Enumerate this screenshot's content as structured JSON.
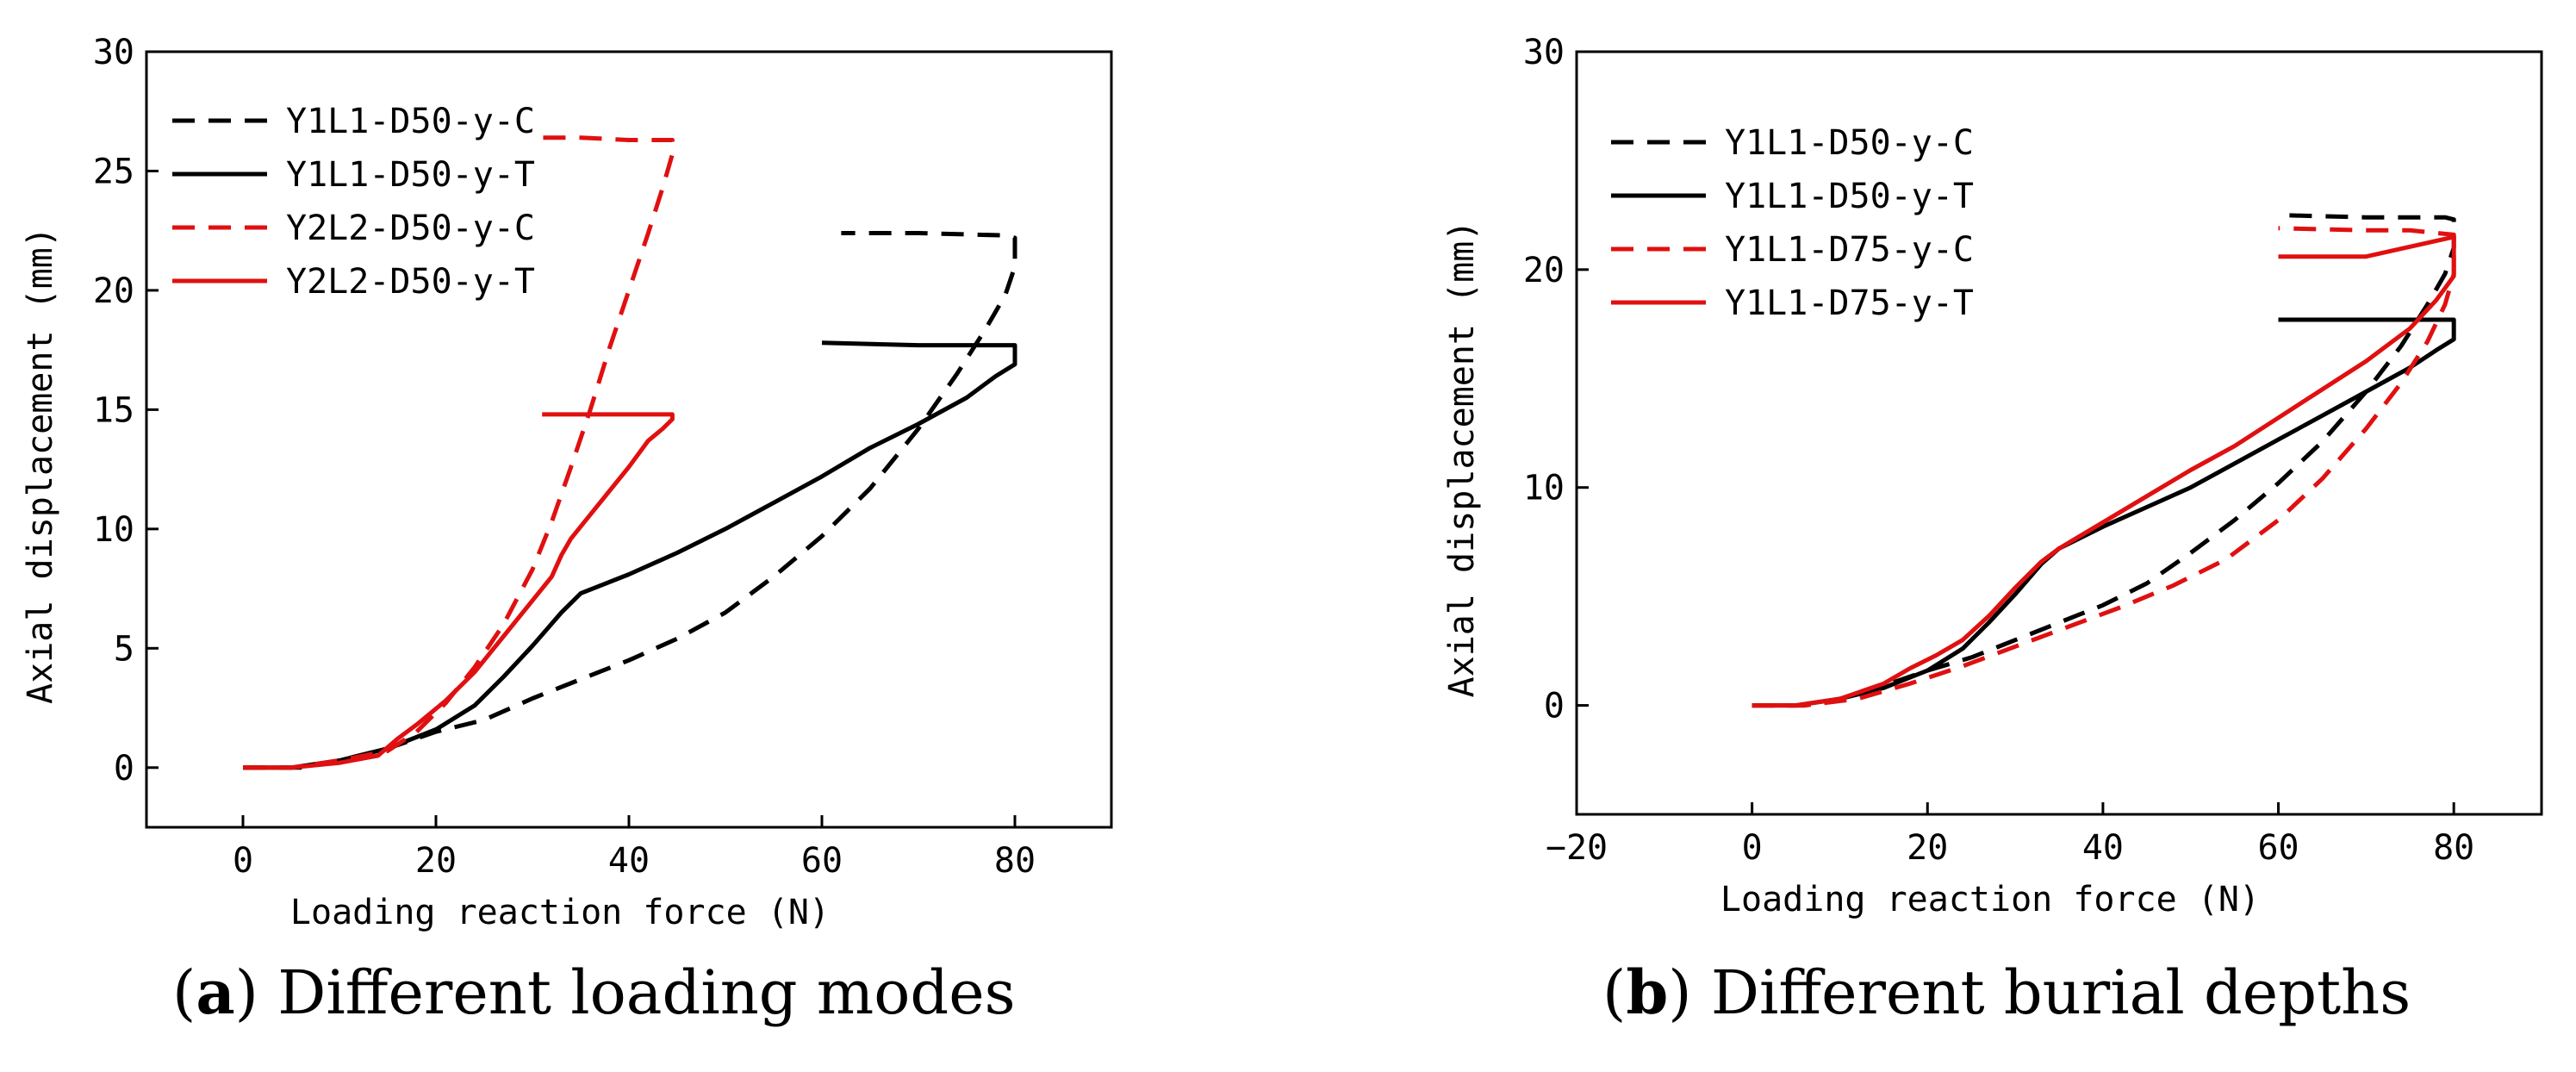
{
  "chart_data": [
    {
      "type": "line",
      "caption_letter": "a",
      "caption_text": "Different loading modes",
      "xlabel": "Loading reaction force (N)",
      "ylabel": "Axial displacement (mm)",
      "xlim": [
        -10,
        90
      ],
      "ylim": [
        -2.5,
        30
      ],
      "xticks": [
        0,
        20,
        40,
        60,
        80
      ],
      "xtick_labels": [
        "0",
        "20",
        "40",
        "60",
        "80"
      ],
      "yticks": [
        0,
        5,
        10,
        15,
        20,
        25,
        30
      ],
      "ytick_labels": [
        "0",
        "5",
        "10",
        "15",
        "20",
        "25",
        "30"
      ],
      "grid": false,
      "legend_position": "top-left",
      "series": [
        {
          "name": "Y1L1-D50-y-C",
          "color": "#000000",
          "dash": "dashed",
          "x": [
            0,
            6,
            10,
            15,
            20,
            25,
            30,
            35,
            40,
            45,
            50,
            55,
            60,
            65,
            70,
            74,
            77,
            79,
            80,
            80,
            79,
            70,
            62
          ],
          "y": [
            0,
            0,
            0.3,
            0.8,
            1.5,
            2.0,
            2.9,
            3.7,
            4.5,
            5.4,
            6.5,
            8.0,
            9.7,
            11.7,
            14.2,
            16.5,
            18.4,
            19.8,
            21.0,
            22.2,
            22.3,
            22.4,
            22.4
          ]
        },
        {
          "name": "Y1L1-D50-y-T",
          "color": "#000000",
          "dash": "solid",
          "x": [
            0,
            5,
            10,
            15,
            20,
            24,
            27,
            30,
            33,
            35,
            40,
            45,
            50,
            55,
            60,
            65,
            70,
            75,
            78,
            80,
            80,
            70,
            60
          ],
          "y": [
            0,
            0,
            0.3,
            0.8,
            1.6,
            2.6,
            3.8,
            5.1,
            6.5,
            7.3,
            8.1,
            9.0,
            10.0,
            11.1,
            12.2,
            13.4,
            14.4,
            15.5,
            16.4,
            16.9,
            17.7,
            17.7,
            17.8
          ]
        },
        {
          "name": "Y2L2-D50-y-C",
          "color": "#e01010",
          "dash": "dashed",
          "x": [
            0,
            5,
            10,
            15,
            18,
            21,
            24,
            27,
            30,
            32,
            34,
            36,
            38,
            40,
            42,
            43.5,
            44.5,
            44.5,
            40,
            35,
            31
          ],
          "y": [
            0,
            0,
            0.3,
            0.7,
            1.5,
            2.7,
            4.2,
            6.0,
            8.3,
            10.3,
            12.6,
            15.0,
            17.6,
            20.0,
            22.4,
            24.3,
            25.7,
            26.3,
            26.3,
            26.4,
            26.4
          ]
        },
        {
          "name": "Y2L2-D50-y-T",
          "color": "#e01010",
          "dash": "solid",
          "x": [
            0,
            5,
            10,
            14,
            16,
            18,
            21,
            24,
            27,
            30,
            32,
            33,
            34,
            36,
            38,
            40,
            42,
            43.5,
            44.5,
            44.5,
            40,
            36,
            31
          ],
          "y": [
            0,
            0,
            0.2,
            0.5,
            1.2,
            1.8,
            2.8,
            4.0,
            5.5,
            7.0,
            8.0,
            8.9,
            9.6,
            10.6,
            11.6,
            12.6,
            13.7,
            14.2,
            14.6,
            14.8,
            14.8,
            14.8,
            14.8
          ]
        }
      ]
    },
    {
      "type": "line",
      "caption_letter": "b",
      "caption_text": "Different burial depths",
      "xlabel": "Loading reaction force (N)",
      "ylabel": "Axial displacement (mm)",
      "xlim": [
        -20,
        90
      ],
      "ylim": [
        -5,
        30
      ],
      "xticks": [
        -20,
        0,
        20,
        40,
        60,
        80
      ],
      "xtick_labels": [
        "−20",
        "0",
        "20",
        "40",
        "60",
        "80"
      ],
      "yticks": [
        0,
        10,
        20,
        30
      ],
      "ytick_labels": [
        "0",
        "10",
        "20",
        "30"
      ],
      "grid": false,
      "legend_position": "top-left",
      "series": [
        {
          "name": "Y1L1-D50-y-C",
          "color": "#000000",
          "dash": "dashed",
          "x": [
            0,
            6,
            10,
            15,
            20,
            25,
            30,
            35,
            40,
            45,
            50,
            55,
            60,
            65,
            70,
            74,
            77,
            79,
            80,
            80,
            79,
            70,
            60
          ],
          "y": [
            0,
            0,
            0.3,
            0.9,
            1.6,
            2.2,
            3.0,
            3.8,
            4.6,
            5.6,
            7.0,
            8.5,
            10.2,
            12.1,
            14.4,
            16.5,
            18.4,
            19.8,
            21.0,
            22.3,
            22.4,
            22.4,
            22.5
          ]
        },
        {
          "name": "Y1L1-D50-y-T",
          "color": "#000000",
          "dash": "solid",
          "x": [
            0,
            5,
            10,
            15,
            20,
            24,
            27,
            30,
            33,
            35,
            40,
            45,
            50,
            55,
            60,
            65,
            70,
            75,
            78,
            80,
            80,
            70,
            60
          ],
          "y": [
            0,
            0,
            0.3,
            0.8,
            1.6,
            2.6,
            3.8,
            5.1,
            6.5,
            7.2,
            8.2,
            9.1,
            10.0,
            11.1,
            12.2,
            13.3,
            14.4,
            15.5,
            16.3,
            16.8,
            17.7,
            17.7,
            17.7
          ]
        },
        {
          "name": "Y1L1-D75-y-C",
          "color": "#e01010",
          "dash": "dashed",
          "x": [
            0,
            6,
            12,
            18,
            24,
            30,
            36,
            42,
            48,
            54,
            60,
            65,
            70,
            74,
            77,
            79,
            80,
            80,
            75,
            70,
            60
          ],
          "y": [
            0,
            0,
            0.3,
            1.0,
            1.8,
            2.7,
            3.6,
            4.5,
            5.5,
            6.7,
            8.5,
            10.4,
            12.7,
            14.8,
            16.7,
            18.4,
            19.8,
            21.6,
            21.8,
            21.8,
            21.9
          ]
        },
        {
          "name": "Y1L1-D75-y-T",
          "color": "#e01010",
          "dash": "solid",
          "x": [
            0,
            5,
            10,
            15,
            18,
            21,
            24,
            27,
            30,
            33,
            35,
            40,
            45,
            50,
            55,
            60,
            65,
            70,
            75,
            78,
            80,
            80,
            70,
            60
          ],
          "y": [
            0,
            0,
            0.3,
            1.0,
            1.7,
            2.3,
            3.0,
            4.1,
            5.4,
            6.6,
            7.2,
            8.4,
            9.6,
            10.8,
            11.9,
            13.2,
            14.5,
            15.8,
            17.3,
            18.6,
            19.7,
            21.5,
            20.6,
            20.6
          ]
        }
      ]
    }
  ]
}
